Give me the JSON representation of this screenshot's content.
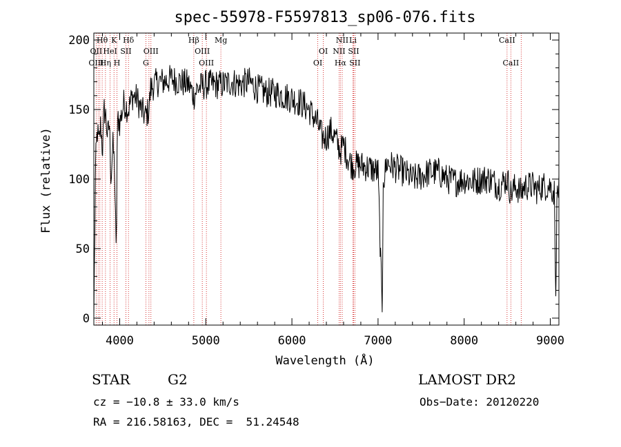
{
  "chart_data": {
    "type": "line",
    "title": "spec-55978-F5597813_sp06-076.fits",
    "xlabel": "Wavelength (Å)",
    "ylabel": "Flux (relative)",
    "xlim": [
      3700,
      9100
    ],
    "ylim": [
      -5,
      205
    ],
    "xticks": [
      4000,
      5000,
      6000,
      7000,
      8000,
      9000
    ],
    "yticks": [
      0,
      50,
      100,
      150,
      200
    ],
    "line_color": "#000000",
    "marker_color": "#cc0000",
    "spectrum": {
      "x": [
        3700,
        3720,
        3740,
        3760,
        3780,
        3800,
        3820,
        3840,
        3860,
        3880,
        3900,
        3920,
        3940,
        3960,
        3970,
        3980,
        4000,
        4050,
        4100,
        4150,
        4200,
        4250,
        4300,
        4340,
        4360,
        4400,
        4450,
        4500,
        4600,
        4700,
        4800,
        4861,
        4900,
        5000,
        5100,
        5200,
        5300,
        5400,
        5500,
        5600,
        5700,
        5800,
        5900,
        6000,
        6100,
        6200,
        6300,
        6350,
        6400,
        6450,
        6500,
        6563,
        6600,
        6650,
        6700,
        6800,
        6900,
        7000,
        7050,
        7060,
        7070,
        7100,
        7200,
        7300,
        7400,
        7500,
        7600,
        7700,
        7800,
        7900,
        8000,
        8100,
        8200,
        8300,
        8400,
        8500,
        8542,
        8600,
        8662,
        8700,
        8800,
        8850,
        8900,
        9000,
        9050,
        9060,
        9080
      ],
      "y": [
        0,
        110,
        135,
        125,
        140,
        120,
        150,
        145,
        130,
        140,
        100,
        125,
        110,
        40,
        120,
        145,
        140,
        155,
        150,
        160,
        158,
        150,
        145,
        150,
        165,
        168,
        170,
        170,
        172,
        170,
        168,
        160,
        165,
        168,
        168,
        168,
        170,
        168,
        170,
        165,
        162,
        162,
        160,
        158,
        155,
        150,
        140,
        130,
        130,
        135,
        130,
        120,
        125,
        115,
        110,
        110,
        108,
        105,
        0,
        105,
        100,
        112,
        108,
        105,
        100,
        102,
        105,
        105,
        100,
        98,
        100,
        98,
        100,
        100,
        95,
        100,
        90,
        95,
        90,
        95,
        95,
        92,
        95,
        95,
        90,
        10,
        92
      ]
    },
    "lines": [
      {
        "label": "Hθ",
        "x": 3797,
        "row": 0
      },
      {
        "label": "OII",
        "x": 3727,
        "row": 1
      },
      {
        "label": "OIII",
        "x": 3727,
        "row": 2
      },
      {
        "label": "K",
        "x": 3934,
        "row": 0
      },
      {
        "label": "HeI",
        "x": 3889,
        "row": 1
      },
      {
        "label": "Hη",
        "x": 3835,
        "row": 2
      },
      {
        "label": "H",
        "x": 3969,
        "row": 2
      },
      {
        "label": "Hδ",
        "x": 4102,
        "row": 0
      },
      {
        "label": "SII",
        "x": 4072,
        "row": 1
      },
      {
        "label": "OIII",
        "x": 4363,
        "row": 1
      },
      {
        "label": "G",
        "x": 4304,
        "row": 2
      },
      {
        "label": "Hβ",
        "x": 4861,
        "row": 0
      },
      {
        "label": "OIII",
        "x": 4959,
        "row": 1
      },
      {
        "label": "OIII",
        "x": 5007,
        "row": 2
      },
      {
        "label": "Mg",
        "x": 5175,
        "row": 0
      },
      {
        "label": "NII",
        "x": 6584,
        "row": 0
      },
      {
        "label": "Li",
        "x": 6708,
        "row": 0
      },
      {
        "label": "OI",
        "x": 6364,
        "row": 1
      },
      {
        "label": "NII",
        "x": 6548,
        "row": 1
      },
      {
        "label": "SII",
        "x": 6716,
        "row": 1
      },
      {
        "label": "OI",
        "x": 6300,
        "row": 2
      },
      {
        "label": "Hα",
        "x": 6563,
        "row": 2
      },
      {
        "label": "SII",
        "x": 6731,
        "row": 2
      },
      {
        "label": "CaII",
        "x": 8498,
        "row": 0
      },
      {
        "label": "CaII",
        "x": 8542,
        "row": 2
      }
    ],
    "marker_positions": [
      3727,
      3750,
      3770,
      3797,
      3835,
      3889,
      3934,
      3969,
      4072,
      4102,
      4304,
      4340,
      4363,
      4861,
      4959,
      5007,
      5175,
      6300,
      6364,
      6548,
      6563,
      6584,
      6708,
      6716,
      6731,
      8498,
      8542,
      8662
    ]
  },
  "info": {
    "object_class": "STAR",
    "subclass": "G2",
    "survey": "LAMOST DR2",
    "cz": "cz = −10.8 ± 33.0 km/s",
    "obs_date": "Obs−Date: 20120220",
    "coords": "RA = 216.58163, DEC =  51.24548"
  }
}
